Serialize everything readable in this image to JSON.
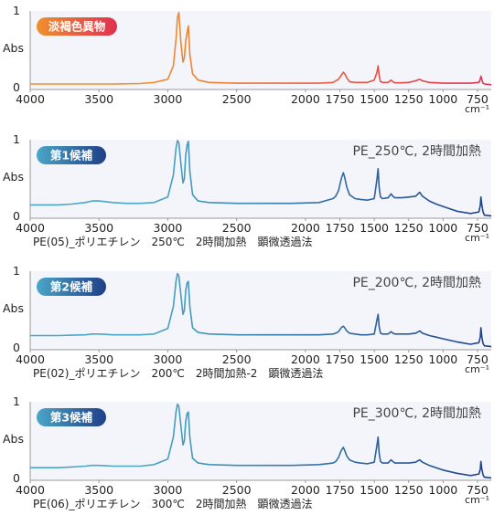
{
  "chart_data": [
    {
      "type": "line",
      "badge": "淡褐色異物",
      "condition": "",
      "caption": "",
      "ylabel": "Abs",
      "xunit": "cm⁻¹",
      "y_ticks": [
        "1",
        "0"
      ],
      "ylim": [
        0,
        1
      ],
      "xlim": [
        4000,
        650
      ],
      "x_ticks": [
        "4000",
        "3500",
        "3000",
        "2500",
        "2000",
        "1750",
        "1500",
        "1250",
        "1000",
        "750"
      ],
      "series": [
        {
          "x": [
            4000,
            3800,
            3600,
            3400,
            3200,
            3100,
            3000,
            2960,
            2940,
            2930,
            2920,
            2905,
            2890,
            2880,
            2870,
            2860,
            2851,
            2840,
            2820,
            2780,
            2700,
            2500,
            2300,
            2100,
            1900,
            1800,
            1760,
            1740,
            1725,
            1715,
            1700,
            1680,
            1640,
            1600,
            1550,
            1500,
            1480,
            1472,
            1465,
            1455,
            1440,
            1400,
            1378,
            1365,
            1350,
            1300,
            1250,
            1200,
            1170,
            1150,
            1100,
            1050,
            1000,
            900,
            800,
            740,
            730,
            725,
            719,
            710,
            700,
            650
          ],
          "y": [
            0.07,
            0.07,
            0.07,
            0.07,
            0.075,
            0.09,
            0.13,
            0.3,
            0.65,
            0.92,
            0.98,
            0.6,
            0.35,
            0.4,
            0.62,
            0.72,
            0.81,
            0.45,
            0.2,
            0.12,
            0.09,
            0.08,
            0.08,
            0.08,
            0.08,
            0.09,
            0.13,
            0.18,
            0.22,
            0.2,
            0.15,
            0.1,
            0.09,
            0.09,
            0.09,
            0.12,
            0.22,
            0.3,
            0.18,
            0.1,
            0.09,
            0.09,
            0.12,
            0.1,
            0.085,
            0.085,
            0.09,
            0.11,
            0.13,
            0.11,
            0.09,
            0.085,
            0.08,
            0.08,
            0.08,
            0.09,
            0.13,
            0.17,
            0.13,
            0.08,
            0.07,
            0.06
          ]
        }
      ],
      "colors": [
        "#f0902e",
        "#e0304f"
      ]
    },
    {
      "type": "line",
      "badge": "第1候補",
      "condition": "PE_250℃, 2時間加熱",
      "caption": "PE(05)_ポリエチレン　250℃　2時間加熱　顕微透過法",
      "ylabel": "Abs",
      "xunit": "cm⁻¹",
      "y_ticks": [
        "1",
        "0"
      ],
      "ylim": [
        0,
        1
      ],
      "xlim": [
        4000,
        650
      ],
      "x_ticks": [
        "4000",
        "3500",
        "3000",
        "2500",
        "2000",
        "1750",
        "1500",
        "1250",
        "1000",
        "750"
      ],
      "series": [
        {
          "x": [
            4000,
            3800,
            3700,
            3600,
            3550,
            3500,
            3450,
            3400,
            3300,
            3200,
            3100,
            3000,
            2960,
            2940,
            2930,
            2920,
            2905,
            2890,
            2880,
            2870,
            2860,
            2851,
            2840,
            2820,
            2780,
            2700,
            2500,
            2300,
            2100,
            1900,
            1800,
            1780,
            1760,
            1740,
            1725,
            1715,
            1700,
            1680,
            1640,
            1600,
            1550,
            1500,
            1480,
            1472,
            1465,
            1455,
            1440,
            1400,
            1378,
            1365,
            1350,
            1300,
            1250,
            1200,
            1170,
            1150,
            1100,
            1050,
            1000,
            900,
            800,
            740,
            730,
            725,
            719,
            710,
            700,
            650
          ],
          "y": [
            0.17,
            0.17,
            0.18,
            0.2,
            0.22,
            0.22,
            0.21,
            0.2,
            0.19,
            0.19,
            0.2,
            0.27,
            0.55,
            0.9,
            0.99,
            0.96,
            0.7,
            0.45,
            0.5,
            0.8,
            0.93,
            0.98,
            0.6,
            0.3,
            0.22,
            0.2,
            0.19,
            0.19,
            0.19,
            0.2,
            0.25,
            0.28,
            0.35,
            0.5,
            0.58,
            0.52,
            0.4,
            0.3,
            0.25,
            0.24,
            0.23,
            0.25,
            0.5,
            0.63,
            0.4,
            0.27,
            0.25,
            0.26,
            0.31,
            0.28,
            0.26,
            0.26,
            0.27,
            0.28,
            0.33,
            0.28,
            0.22,
            0.18,
            0.15,
            0.09,
            0.06,
            0.08,
            0.16,
            0.27,
            0.18,
            0.08,
            0.04,
            0.03
          ]
        }
      ],
      "colors": [
        "#4aa6c6",
        "#1f3f88"
      ]
    },
    {
      "type": "line",
      "badge": "第2候補",
      "condition": "PE_200℃, 2時間加熱",
      "caption": "PE(02)_ポリエチレン　200℃　2時間加熱-2　顕微透過法",
      "ylabel": "Abs",
      "xunit": "cm⁻¹",
      "y_ticks": [
        "1",
        "0"
      ],
      "ylim": [
        0,
        1
      ],
      "xlim": [
        4000,
        650
      ],
      "x_ticks": [
        "4000",
        "3500",
        "3000",
        "2500",
        "2000",
        "1750",
        "1500",
        "1250",
        "1000",
        "750"
      ],
      "series": [
        {
          "x": [
            4000,
            3800,
            3700,
            3600,
            3550,
            3500,
            3450,
            3400,
            3300,
            3200,
            3100,
            3000,
            2960,
            2940,
            2930,
            2920,
            2905,
            2890,
            2880,
            2870,
            2860,
            2851,
            2840,
            2820,
            2780,
            2700,
            2500,
            2300,
            2100,
            1900,
            1800,
            1780,
            1760,
            1740,
            1725,
            1715,
            1700,
            1680,
            1640,
            1600,
            1550,
            1500,
            1480,
            1472,
            1465,
            1455,
            1440,
            1400,
            1378,
            1365,
            1350,
            1300,
            1250,
            1200,
            1170,
            1150,
            1100,
            1050,
            1000,
            900,
            800,
            740,
            730,
            725,
            719,
            710,
            700,
            650
          ],
          "y": [
            0.18,
            0.18,
            0.185,
            0.19,
            0.2,
            0.2,
            0.195,
            0.19,
            0.19,
            0.19,
            0.2,
            0.27,
            0.55,
            0.88,
            0.97,
            0.94,
            0.7,
            0.45,
            0.5,
            0.75,
            0.85,
            0.87,
            0.55,
            0.28,
            0.22,
            0.2,
            0.19,
            0.19,
            0.19,
            0.19,
            0.2,
            0.21,
            0.23,
            0.28,
            0.3,
            0.28,
            0.24,
            0.21,
            0.2,
            0.19,
            0.19,
            0.2,
            0.38,
            0.45,
            0.3,
            0.21,
            0.2,
            0.2,
            0.23,
            0.21,
            0.2,
            0.2,
            0.2,
            0.21,
            0.24,
            0.21,
            0.18,
            0.16,
            0.14,
            0.1,
            0.07,
            0.09,
            0.16,
            0.28,
            0.17,
            0.08,
            0.05,
            0.04
          ]
        }
      ],
      "colors": [
        "#4aa6c6",
        "#1f3f88"
      ]
    },
    {
      "type": "line",
      "badge": "第3候補",
      "condition": "PE_300℃, 2時間加熱",
      "caption": "PE(06)_ポリエチレン　300℃　2時間加熱　顕微透過法",
      "ylabel": "Abs",
      "xunit": "cm⁻¹",
      "y_ticks": [
        "1",
        "0"
      ],
      "ylim": [
        0,
        1
      ],
      "xlim": [
        4000,
        650
      ],
      "x_ticks": [
        "4000",
        "3500",
        "3000",
        "2500",
        "2000",
        "1750",
        "1500",
        "1250",
        "1000",
        "750"
      ],
      "series": [
        {
          "x": [
            4000,
            3800,
            3700,
            3600,
            3550,
            3500,
            3450,
            3400,
            3300,
            3200,
            3100,
            3000,
            2960,
            2940,
            2930,
            2920,
            2905,
            2890,
            2880,
            2870,
            2860,
            2851,
            2840,
            2820,
            2780,
            2700,
            2500,
            2300,
            2100,
            1900,
            1800,
            1780,
            1760,
            1740,
            1725,
            1715,
            1700,
            1680,
            1640,
            1600,
            1550,
            1500,
            1480,
            1472,
            1465,
            1455,
            1440,
            1400,
            1378,
            1365,
            1350,
            1300,
            1250,
            1200,
            1170,
            1150,
            1100,
            1050,
            1000,
            900,
            800,
            740,
            730,
            725,
            719,
            710,
            700,
            650
          ],
          "y": [
            0.16,
            0.16,
            0.17,
            0.18,
            0.19,
            0.19,
            0.185,
            0.18,
            0.18,
            0.18,
            0.2,
            0.27,
            0.55,
            0.88,
            0.97,
            0.94,
            0.7,
            0.45,
            0.5,
            0.75,
            0.85,
            0.87,
            0.55,
            0.28,
            0.22,
            0.2,
            0.19,
            0.19,
            0.19,
            0.2,
            0.22,
            0.24,
            0.29,
            0.38,
            0.42,
            0.38,
            0.31,
            0.26,
            0.23,
            0.22,
            0.21,
            0.23,
            0.45,
            0.55,
            0.35,
            0.24,
            0.22,
            0.22,
            0.26,
            0.24,
            0.22,
            0.22,
            0.22,
            0.23,
            0.26,
            0.23,
            0.19,
            0.16,
            0.13,
            0.09,
            0.06,
            0.08,
            0.14,
            0.24,
            0.15,
            0.07,
            0.04,
            0.03
          ]
        }
      ],
      "colors": [
        "#4aa6c6",
        "#1f3f88"
      ]
    }
  ]
}
